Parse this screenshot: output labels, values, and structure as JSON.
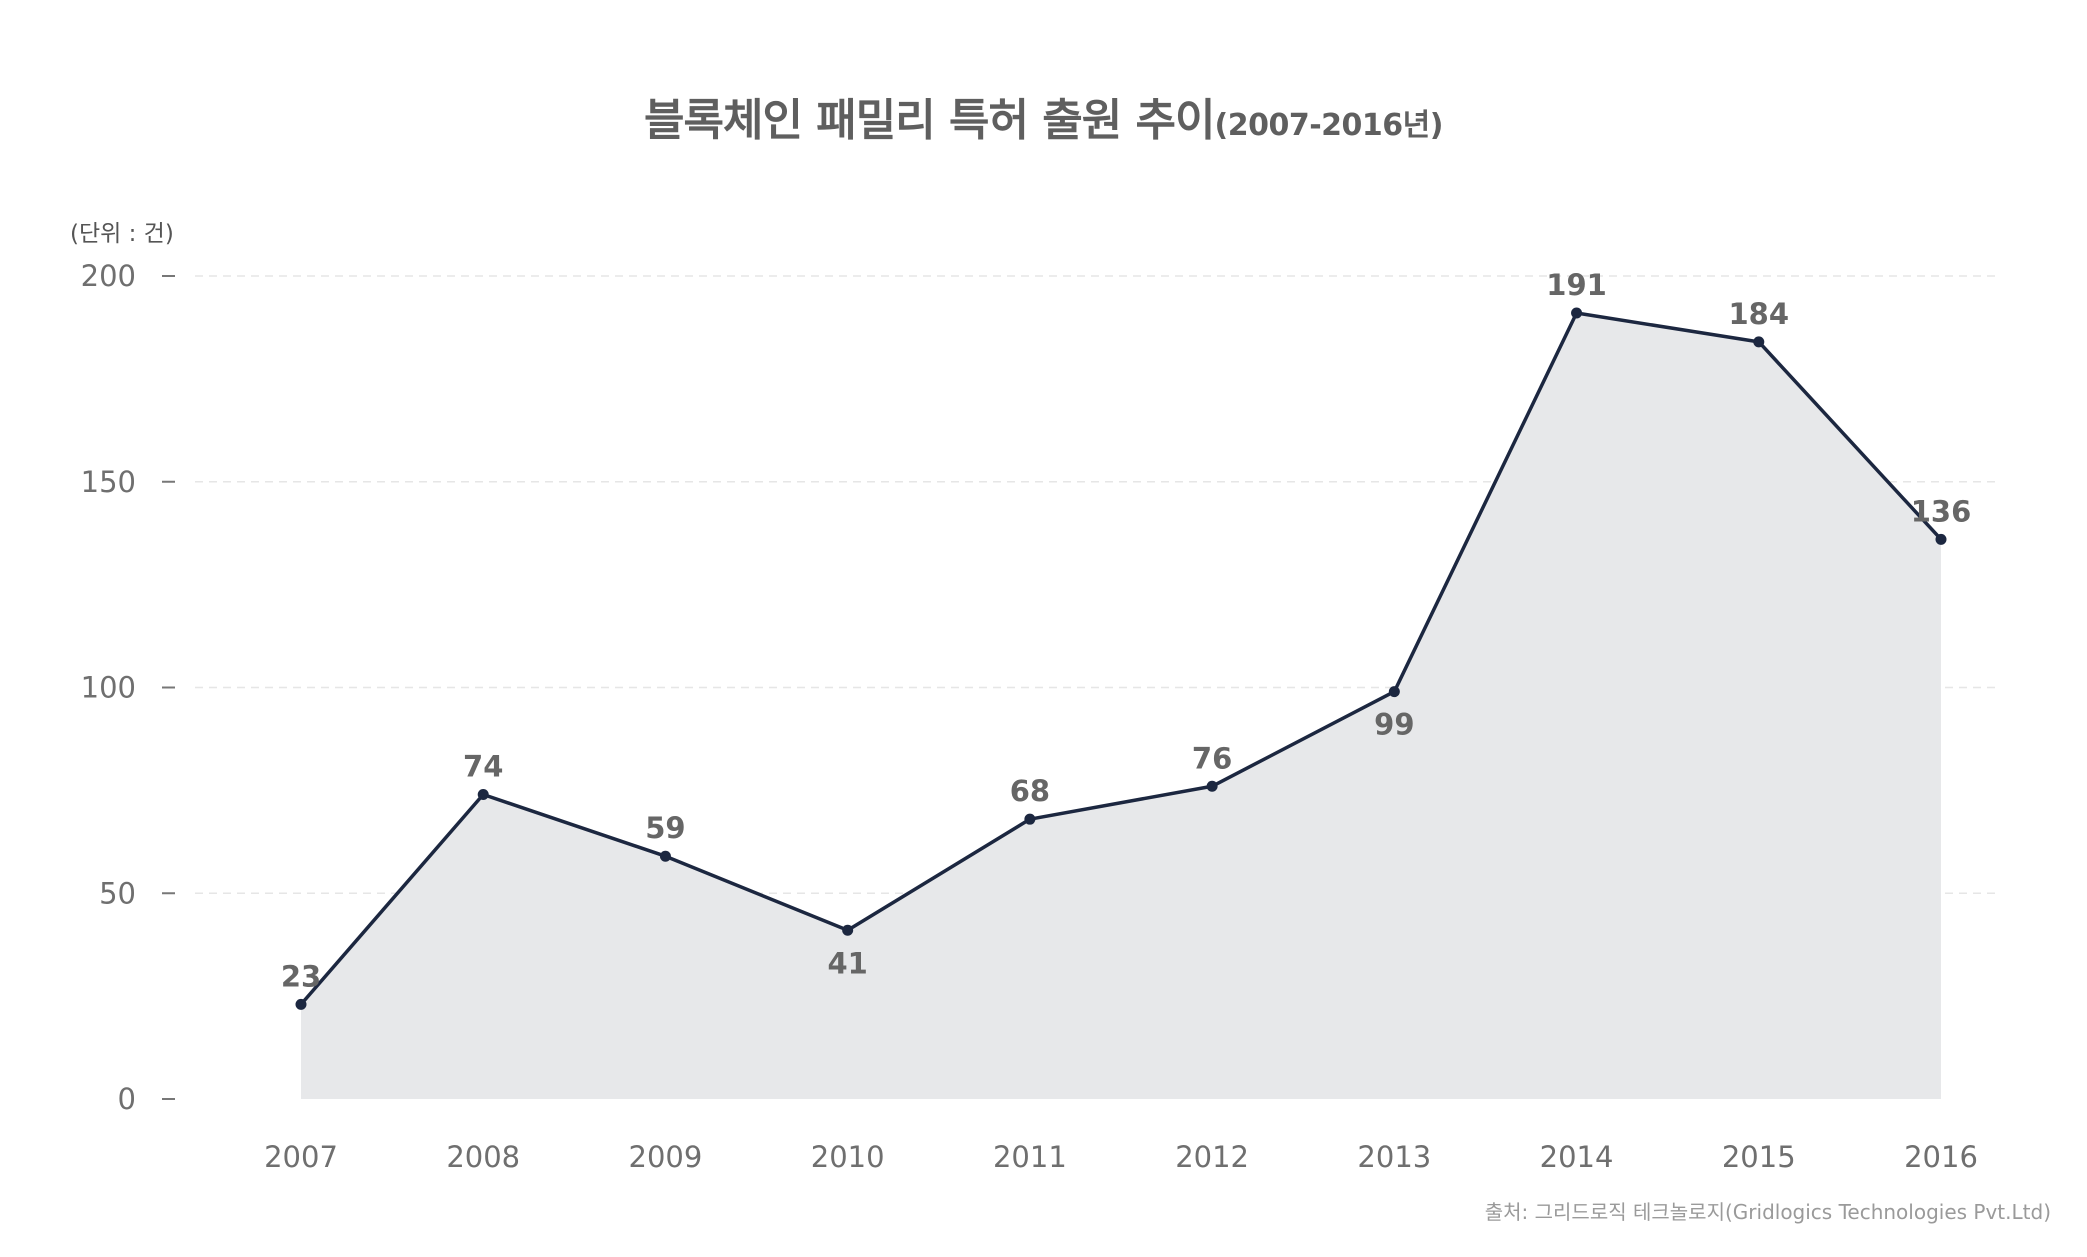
{
  "title": {
    "main": "블록체인 패밀리 특허 출원 추이",
    "sub": "(2007-2016년)"
  },
  "unit_label": "(단위 : 건)",
  "source": "출처: 그리드로직 테크놀로지(Gridlogics Technologies Pvt.Ltd)",
  "colors": {
    "line": "#1c2740",
    "area_fill": "#e7e8ea",
    "text": "#5f5f5f",
    "grid": "#e6e6e6"
  },
  "chart_data": {
    "type": "area",
    "title": "블록체인 패밀리 특허 출원 추이(2007-2016년)",
    "xlabel": "",
    "ylabel": "(단위 : 건)",
    "categories": [
      "2007",
      "2008",
      "2009",
      "2010",
      "2011",
      "2012",
      "2013",
      "2014",
      "2015",
      "2016"
    ],
    "series": [
      {
        "name": "블록체인 패밀리 특허 출원",
        "values": [
          23,
          74,
          59,
          41,
          68,
          76,
          99,
          191,
          184,
          136
        ]
      }
    ],
    "ylim": [
      0,
      200
    ],
    "yticks": [
      0,
      50,
      100,
      150,
      200
    ],
    "grid": true,
    "legend": "none",
    "data_labels": true,
    "source": "출처: 그리드로직 테크놀로지(Gridlogics Technologies Pvt.Ltd)"
  }
}
